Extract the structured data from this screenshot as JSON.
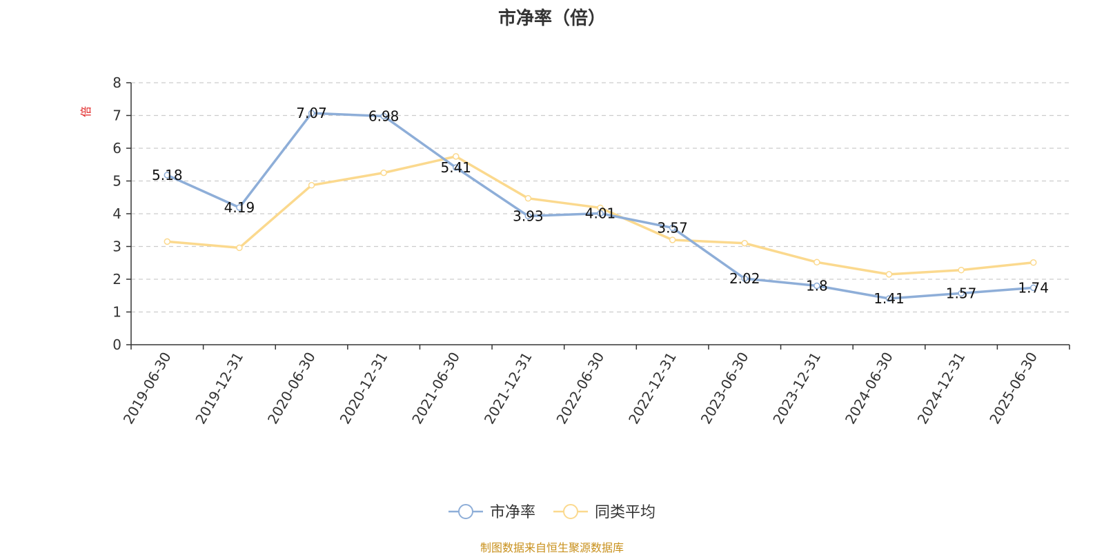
{
  "chart_data": {
    "type": "line",
    "title": "市净率（倍）",
    "ylabel": "倍",
    "ylim": [
      0,
      8
    ],
    "yticks": [
      "0",
      "1",
      "2",
      "3",
      "4",
      "5",
      "6",
      "7",
      "8"
    ],
    "grid": true,
    "legend_position": "bottom-center",
    "categories": [
      "2019-06-30",
      "2019-12-31",
      "2020-06-30",
      "2020-12-31",
      "2021-06-30",
      "2021-12-31",
      "2022-06-30",
      "2022-12-31",
      "2023-06-30",
      "2023-12-31",
      "2024-06-30",
      "2024-12-31",
      "2025-06-30"
    ],
    "series": [
      {
        "name": "市净率",
        "color": "#8eaed8",
        "values": [
          5.18,
          4.19,
          7.07,
          6.98,
          5.41,
          3.93,
          4.01,
          3.57,
          2.02,
          1.8,
          1.41,
          1.57,
          1.74
        ],
        "labels": [
          "5.18",
          "4.19",
          "7.07",
          "6.98",
          "5.41",
          "3.93",
          "4.01",
          "3.57",
          "2.02",
          "1.8",
          "1.41",
          "1.57",
          "1.74"
        ]
      },
      {
        "name": "同类平均",
        "color": "#fbd98e",
        "values": [
          3.15,
          2.96,
          4.87,
          5.25,
          5.75,
          4.47,
          4.18,
          3.2,
          3.1,
          2.52,
          2.15,
          2.28,
          2.51
        ]
      }
    ]
  },
  "source_note": "制图数据来自恒生聚源数据库"
}
